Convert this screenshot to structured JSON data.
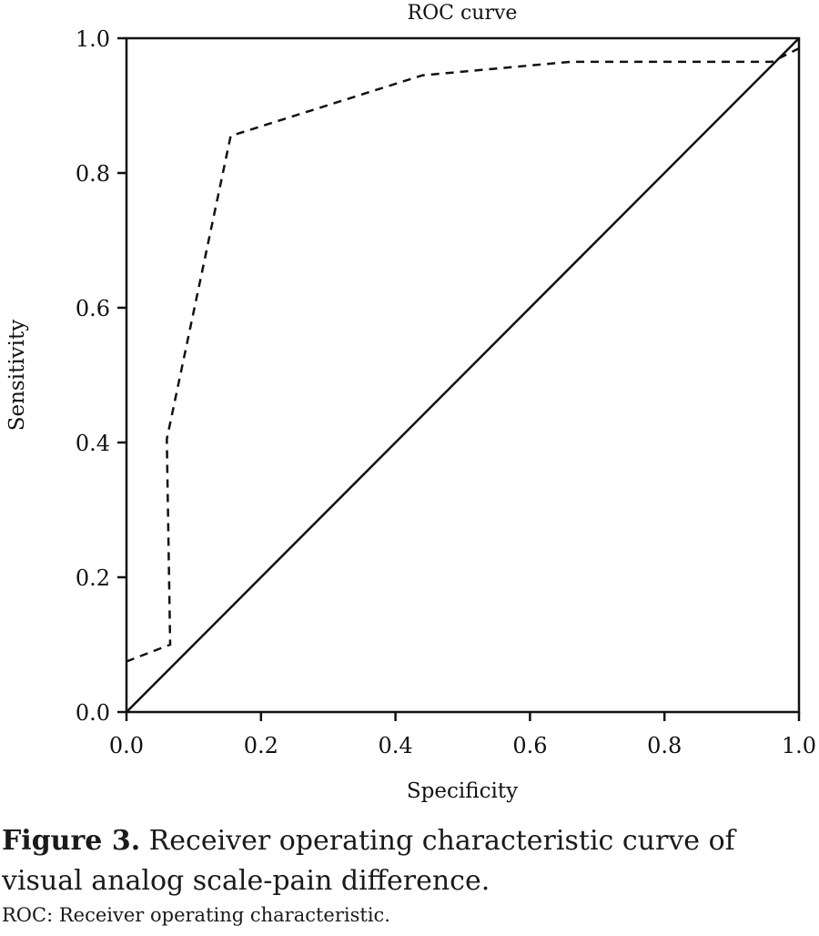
{
  "chart_data": {
    "type": "line",
    "title": "ROC curve",
    "xlabel": "Specificity",
    "ylabel": "Sensitivity",
    "xlim": [
      0.0,
      1.0
    ],
    "ylim": [
      0.0,
      1.0
    ],
    "xticks": [
      "0.0",
      "0.2",
      "0.4",
      "0.6",
      "0.8",
      "1.0"
    ],
    "yticks": [
      "0.0",
      "0.2",
      "0.4",
      "0.6",
      "0.8",
      "1.0"
    ],
    "grid": false,
    "series": [
      {
        "style": "dashed",
        "color": "#111111",
        "x": [
          0.0,
          0.065,
          0.06,
          0.155,
          0.44,
          0.66,
          0.96,
          1.0
        ],
        "y": [
          0.075,
          0.1,
          0.405,
          0.855,
          0.945,
          0.965,
          0.965,
          0.985
        ]
      },
      {
        "style": "solid",
        "color": "#111111",
        "x": [
          0.0,
          1.0
        ],
        "y": [
          0.0,
          1.0
        ]
      }
    ]
  },
  "caption": {
    "label": "Figure 3.",
    "text": " Receiver operating characteristic curve of visual analog scale-pain difference."
  },
  "footnote": "ROC: Receiver operating characteristic."
}
